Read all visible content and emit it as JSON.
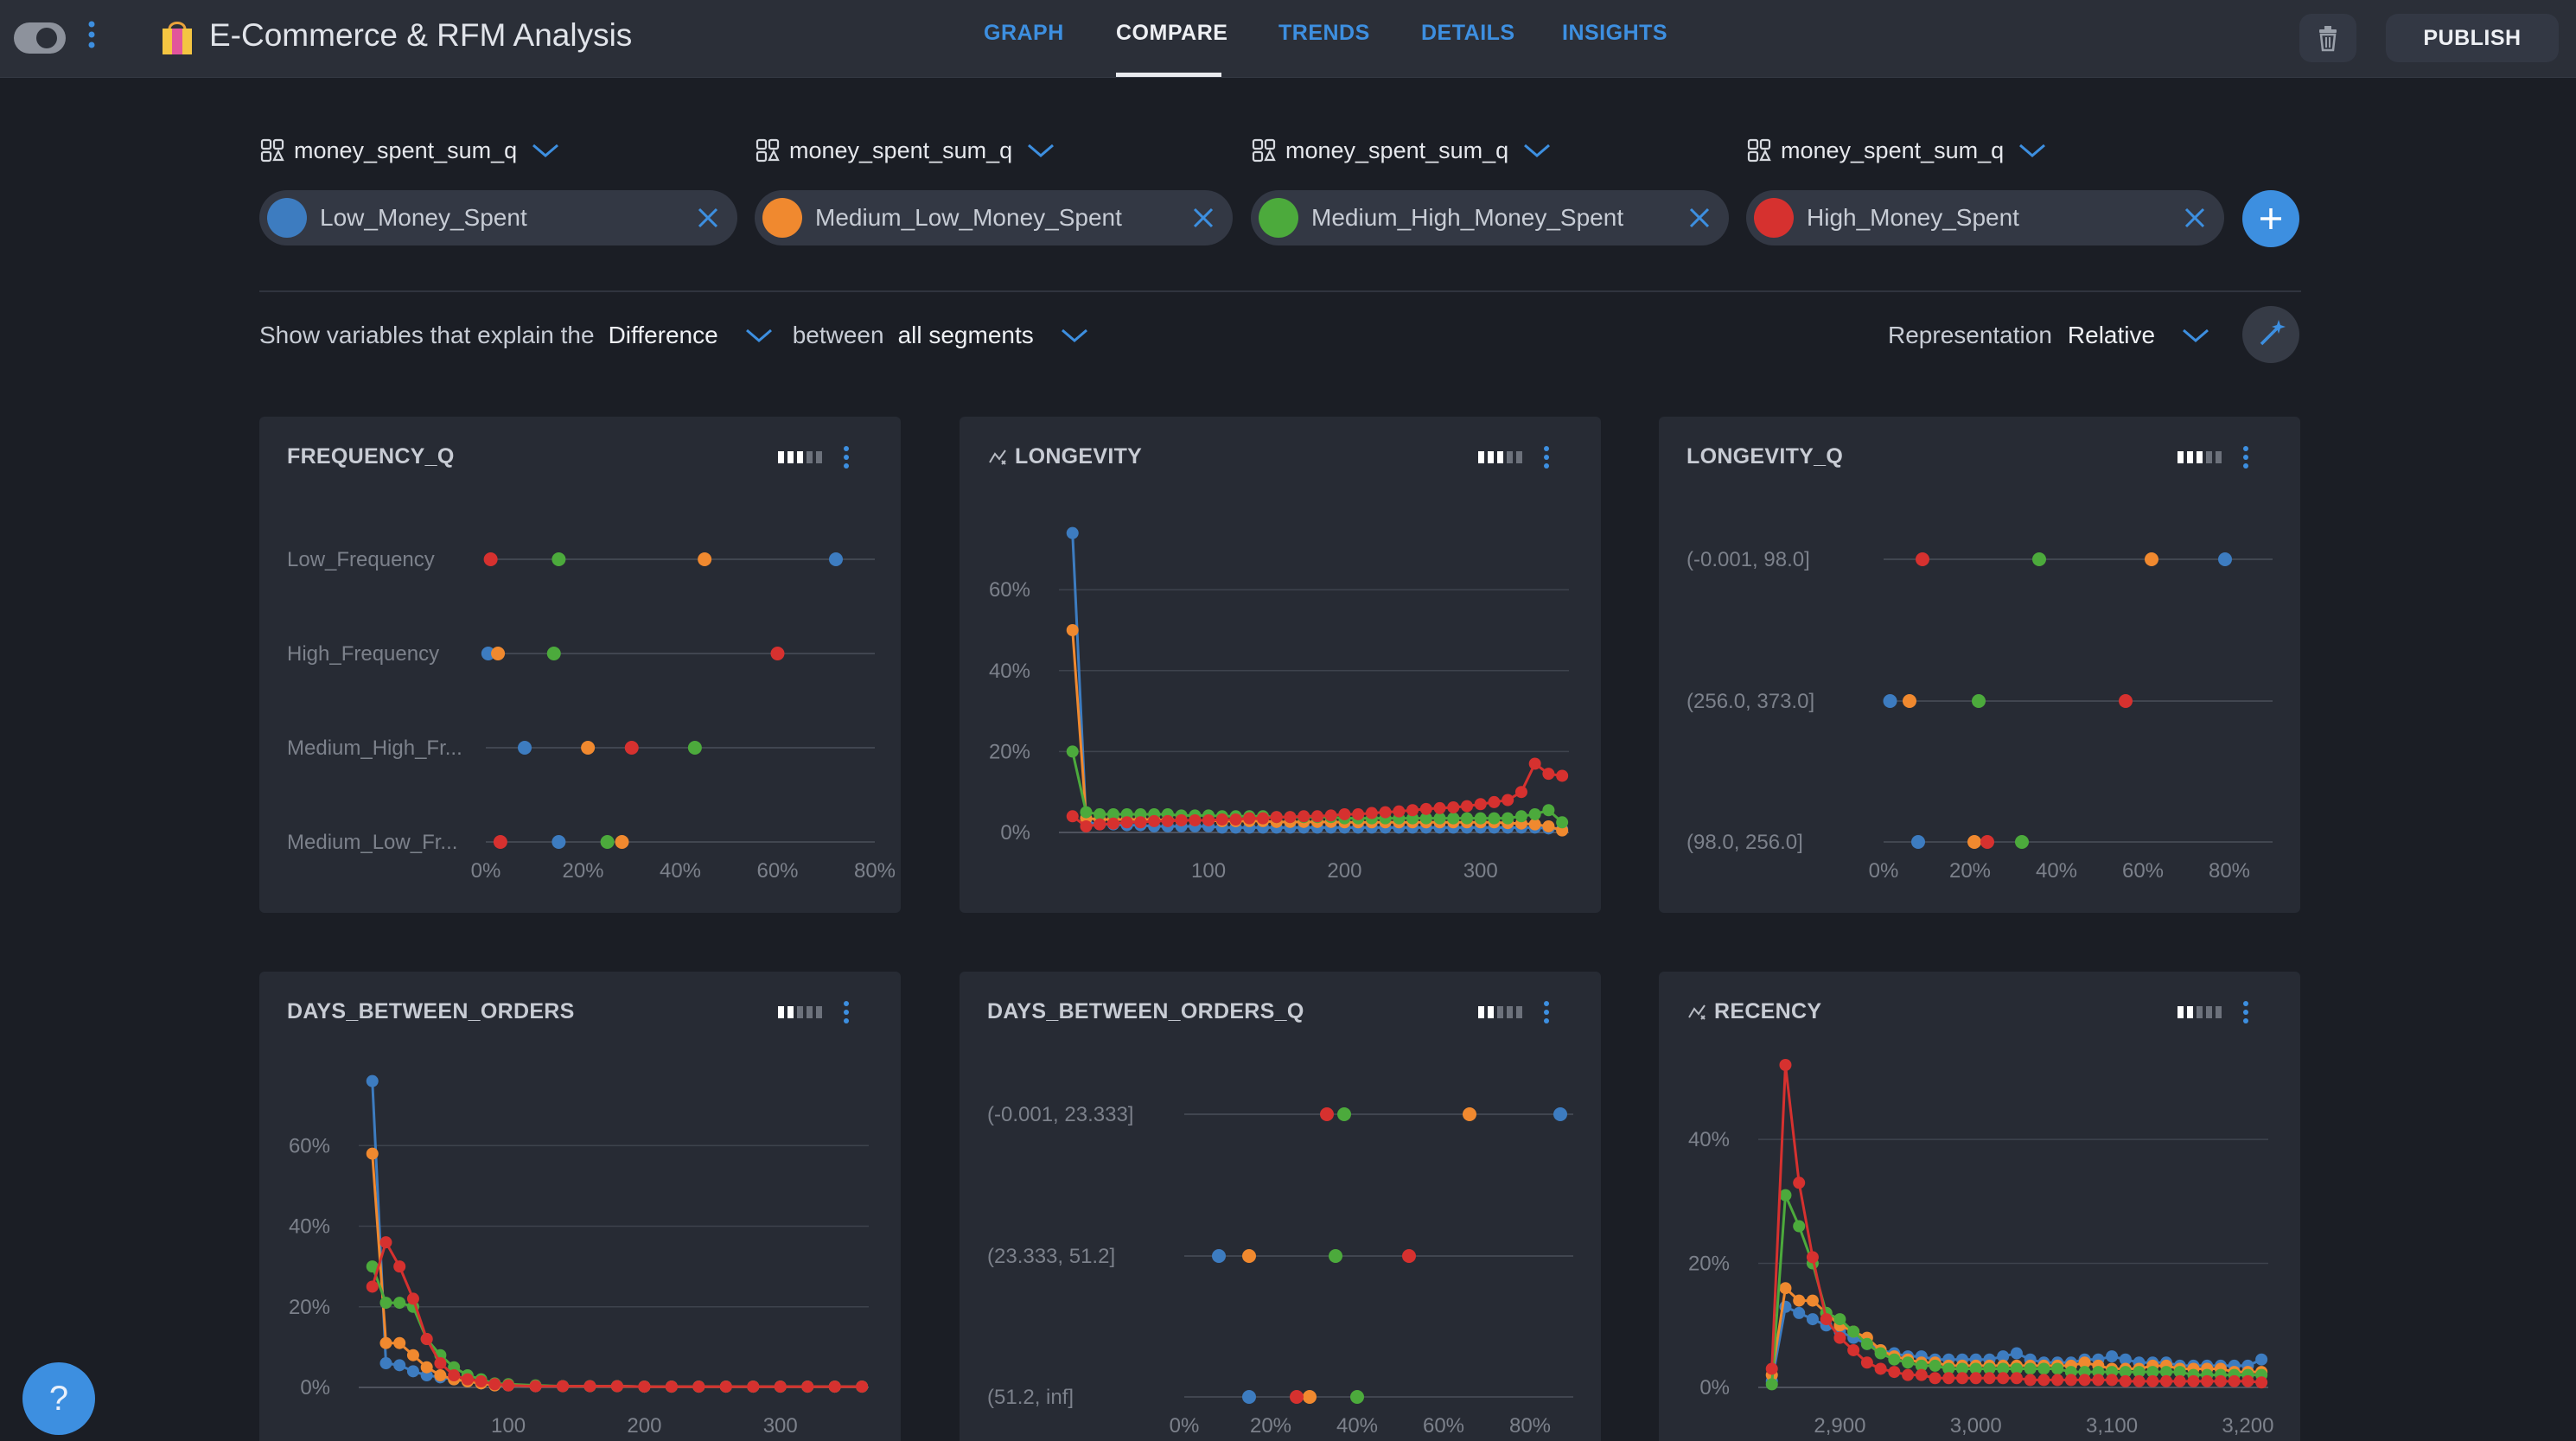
{
  "app": {
    "title": "E-Commerce & RFM Analysis"
  },
  "nav": {
    "tabs": [
      {
        "label": "GRAPH",
        "active": false
      },
      {
        "label": "COMPARE",
        "active": true
      },
      {
        "label": "TRENDS",
        "active": false
      },
      {
        "label": "DETAILS",
        "active": false
      },
      {
        "label": "INSIGHTS",
        "active": false
      }
    ]
  },
  "toolbar": {
    "publish_label": "PUBLISH",
    "trash_icon": "trash-icon"
  },
  "colors": {
    "blue": "#3d7cc0",
    "orange": "#f0892f",
    "green": "#4caa3c",
    "red": "#d6312f",
    "accent": "#3d8fe0"
  },
  "segments": [
    {
      "variable": "money_spent_sum_q",
      "value": "Low_Money_Spent",
      "color": "#3d7cc0"
    },
    {
      "variable": "money_spent_sum_q",
      "value": "Medium_Low_Money_Spent",
      "color": "#f0892f"
    },
    {
      "variable": "money_spent_sum_q",
      "value": "Medium_High_Money_Spent",
      "color": "#4caa3c"
    },
    {
      "variable": "money_spent_sum_q",
      "value": "High_Money_Spent",
      "color": "#d6312f"
    }
  ],
  "controls": {
    "explain_prefix": "Show variables that explain the",
    "explain_value": "Difference",
    "between_label": "between",
    "between_value": "all segments",
    "representation_label": "Representation",
    "representation_value": "Relative"
  },
  "help": {
    "label": "?"
  },
  "chart_data": [
    {
      "title": "FREQUENCY_Q",
      "type": "scatter",
      "orientation": "dot-plot",
      "categories": [
        "Low_Frequency",
        "High_Frequency",
        "Medium_High_Fr...",
        "Medium_Low_Fr..."
      ],
      "x_ticks": [
        "0%",
        "20%",
        "40%",
        "60%",
        "80%"
      ],
      "xlim": [
        0,
        80
      ],
      "series": [
        {
          "values": [
            72,
            0.5,
            8,
            15
          ]
        },
        {
          "values": [
            45,
            2.5,
            21,
            28
          ]
        },
        {
          "values": [
            15,
            14,
            43,
            25
          ]
        },
        {
          "values": [
            1,
            60,
            30,
            3
          ]
        }
      ]
    },
    {
      "title": "LONGEVITY",
      "type": "line",
      "x": [
        0,
        10,
        20,
        30,
        40,
        50,
        60,
        70,
        80,
        90,
        100,
        110,
        120,
        130,
        140,
        150,
        160,
        170,
        180,
        190,
        200,
        210,
        220,
        230,
        240,
        250,
        260,
        270,
        280,
        290,
        300,
        310,
        320,
        330,
        340,
        350,
        360
      ],
      "x_ticks": [
        "100",
        "200",
        "300"
      ],
      "xlim": [
        -10,
        365
      ],
      "y_ticks": [
        "0%",
        "20%",
        "40%",
        "60%"
      ],
      "ylim": [
        0,
        75
      ],
      "series": [
        {
          "values": [
            74,
            2.5,
            2,
            2,
            1.8,
            1.8,
            1.5,
            1.5,
            1.5,
            1.5,
            1.5,
            1.2,
            1.2,
            1.2,
            1.2,
            1.2,
            1.2,
            1.2,
            1.2,
            1.2,
            1.2,
            1.2,
            1.2,
            1.2,
            1.2,
            1.2,
            1.2,
            1.2,
            1.2,
            1.2,
            1.2,
            1.2,
            1.2,
            1.2,
            1.2,
            1.0,
            0.8
          ]
        },
        {
          "values": [
            50,
            3.5,
            3.2,
            3.2,
            3.2,
            3.2,
            3.2,
            3.0,
            3.0,
            3.0,
            3.0,
            2.8,
            2.8,
            2.8,
            2.8,
            2.6,
            2.6,
            2.6,
            2.6,
            2.6,
            2.5,
            2.5,
            2.5,
            2.5,
            2.5,
            2.5,
            2.5,
            2.5,
            2.5,
            2.5,
            2.5,
            2.5,
            2.3,
            2.2,
            2.0,
            1.5,
            0.5
          ]
        },
        {
          "values": [
            20,
            5,
            4.5,
            4.5,
            4.5,
            4.5,
            4.5,
            4.5,
            4.2,
            4.2,
            4.2,
            4.0,
            4.0,
            4.0,
            4.0,
            3.8,
            3.8,
            3.8,
            3.8,
            3.8,
            3.5,
            3.5,
            3.5,
            3.5,
            3.5,
            3.5,
            3.5,
            3.5,
            3.5,
            3.5,
            3.5,
            3.5,
            3.5,
            4.0,
            4.5,
            5.5,
            2.5
          ]
        },
        {
          "values": [
            4,
            1.5,
            2,
            2.2,
            2.5,
            2.5,
            2.8,
            2.8,
            3.0,
            3.0,
            3.0,
            3.2,
            3.2,
            3.5,
            3.5,
            3.8,
            3.8,
            4.0,
            4.0,
            4.2,
            4.5,
            4.5,
            4.8,
            5.0,
            5.2,
            5.5,
            5.8,
            6.0,
            6.2,
            6.5,
            7.0,
            7.5,
            8.0,
            10,
            17,
            14.5,
            14
          ]
        }
      ]
    },
    {
      "title": "LONGEVITY_Q",
      "type": "scatter",
      "orientation": "dot-plot",
      "categories": [
        "(-0.001, 98.0]",
        "(256.0, 373.0]",
        "(98.0, 256.0]"
      ],
      "x_ticks": [
        "0%",
        "20%",
        "40%",
        "60%",
        "80%"
      ],
      "xlim": [
        0,
        90
      ],
      "series": [
        {
          "values": [
            79,
            1.5,
            8
          ]
        },
        {
          "values": [
            62,
            6,
            21
          ]
        },
        {
          "values": [
            36,
            22,
            32
          ]
        },
        {
          "values": [
            9,
            56,
            24
          ]
        }
      ]
    },
    {
      "title": "DAYS_BETWEEN_ORDERS",
      "type": "line",
      "x": [
        0,
        10,
        20,
        30,
        40,
        50,
        60,
        70,
        80,
        90,
        100,
        120,
        140,
        160,
        180,
        200,
        220,
        240,
        260,
        280,
        300,
        320,
        340,
        360
      ],
      "x_ticks": [
        "100",
        "200",
        "300"
      ],
      "xlim": [
        -10,
        365
      ],
      "y_ticks": [
        "0%",
        "20%",
        "40%",
        "60%"
      ],
      "ylim": [
        0,
        80
      ],
      "series": [
        {
          "values": [
            76,
            6,
            5.5,
            4,
            3,
            2.5,
            2,
            1.5,
            1,
            0.5,
            0.5,
            0.3,
            0.3,
            0.3,
            0.3,
            0.2,
            0.2,
            0.2,
            0.2,
            0.2,
            0.2,
            0.2,
            0.2,
            0.2
          ]
        },
        {
          "values": [
            58,
            11,
            11,
            8,
            5,
            3,
            2,
            1.5,
            1,
            0.5,
            0.5,
            0.3,
            0.3,
            0.3,
            0.3,
            0.2,
            0.2,
            0.2,
            0.2,
            0.2,
            0.2,
            0.2,
            0.2,
            0.2
          ]
        },
        {
          "values": [
            30,
            21,
            21,
            20,
            12,
            8,
            5,
            3,
            2,
            1,
            0.8,
            0.5,
            0.3,
            0.3,
            0.3,
            0.2,
            0.2,
            0.2,
            0.2,
            0.2,
            0.2,
            0.2,
            0.2,
            0.2
          ]
        },
        {
          "values": [
            25,
            36,
            30,
            22,
            12,
            6,
            3,
            2,
            1.5,
            0.8,
            0.5,
            0.3,
            0.3,
            0.3,
            0.3,
            0.2,
            0.2,
            0.2,
            0.2,
            0.2,
            0.2,
            0.2,
            0.2,
            0.2
          ]
        }
      ]
    },
    {
      "title": "DAYS_BETWEEN_ORDERS_Q",
      "type": "scatter",
      "orientation": "dot-plot",
      "categories": [
        "(-0.001, 23.333]",
        "(23.333, 51.2]",
        "(51.2, inf]"
      ],
      "x_ticks": [
        "0%",
        "20%",
        "40%",
        "60%",
        "80%"
      ],
      "xlim": [
        0,
        90
      ],
      "series": [
        {
          "values": [
            87,
            8,
            15
          ]
        },
        {
          "values": [
            66,
            15,
            29
          ]
        },
        {
          "values": [
            37,
            35,
            40
          ]
        },
        {
          "values": [
            33,
            52,
            26
          ]
        }
      ]
    },
    {
      "title": "RECENCY",
      "type": "line",
      "x": [
        2850,
        2860,
        2870,
        2880,
        2890,
        2900,
        2910,
        2920,
        2930,
        2940,
        2950,
        2960,
        2970,
        2980,
        2990,
        3000,
        3010,
        3020,
        3030,
        3040,
        3050,
        3060,
        3070,
        3080,
        3090,
        3100,
        3110,
        3120,
        3130,
        3140,
        3150,
        3160,
        3170,
        3180,
        3190,
        3200,
        3210
      ],
      "x_ticks": [
        "2,900",
        "3,000",
        "3,100",
        "3,200"
      ],
      "xlim": [
        2840,
        3215
      ],
      "y_ticks": [
        "0%",
        "20%",
        "40%"
      ],
      "ylim": [
        0,
        52
      ],
      "series": [
        {
          "values": [
            1,
            13,
            12,
            11,
            10,
            9,
            8,
            7,
            6,
            5.5,
            5,
            5,
            4.5,
            4.5,
            4.5,
            4.5,
            4.5,
            5,
            5.5,
            4.5,
            4,
            4,
            4,
            4.5,
            4.5,
            5,
            4.5,
            4,
            4,
            4,
            3.5,
            3.5,
            3.5,
            3.5,
            3.5,
            3.5,
            4.5
          ]
        },
        {
          "values": [
            2,
            16,
            14,
            14,
            12,
            10,
            9,
            8,
            6,
            5,
            4.5,
            4,
            4,
            3.5,
            3.5,
            3.5,
            3.5,
            3.5,
            3.5,
            3.5,
            3.5,
            3.5,
            3.5,
            4,
            3.5,
            3,
            3,
            3,
            3.5,
            3.5,
            3,
            3,
            3,
            3,
            2.5,
            2.5,
            2.5
          ]
        },
        {
          "values": [
            0.5,
            31,
            26,
            20,
            12,
            11,
            9,
            7,
            5.5,
            4.5,
            4,
            3.5,
            3.5,
            3,
            3,
            3,
            3,
            3,
            3,
            3,
            3,
            3,
            2.5,
            2.5,
            2.5,
            2.5,
            2.5,
            2.5,
            2.5,
            2.5,
            2.5,
            2,
            2,
            2,
            2,
            2,
            2
          ]
        },
        {
          "values": [
            3,
            52,
            33,
            21,
            11,
            8,
            6,
            4,
            3,
            2.5,
            2,
            2,
            1.5,
            1.5,
            1.5,
            1.5,
            1.5,
            1.5,
            1.5,
            1.2,
            1.2,
            1.2,
            1.2,
            1.2,
            1.2,
            1.2,
            1,
            1,
            1,
            1,
            1,
            1,
            1,
            1,
            1,
            1,
            0.8
          ]
        }
      ]
    }
  ]
}
